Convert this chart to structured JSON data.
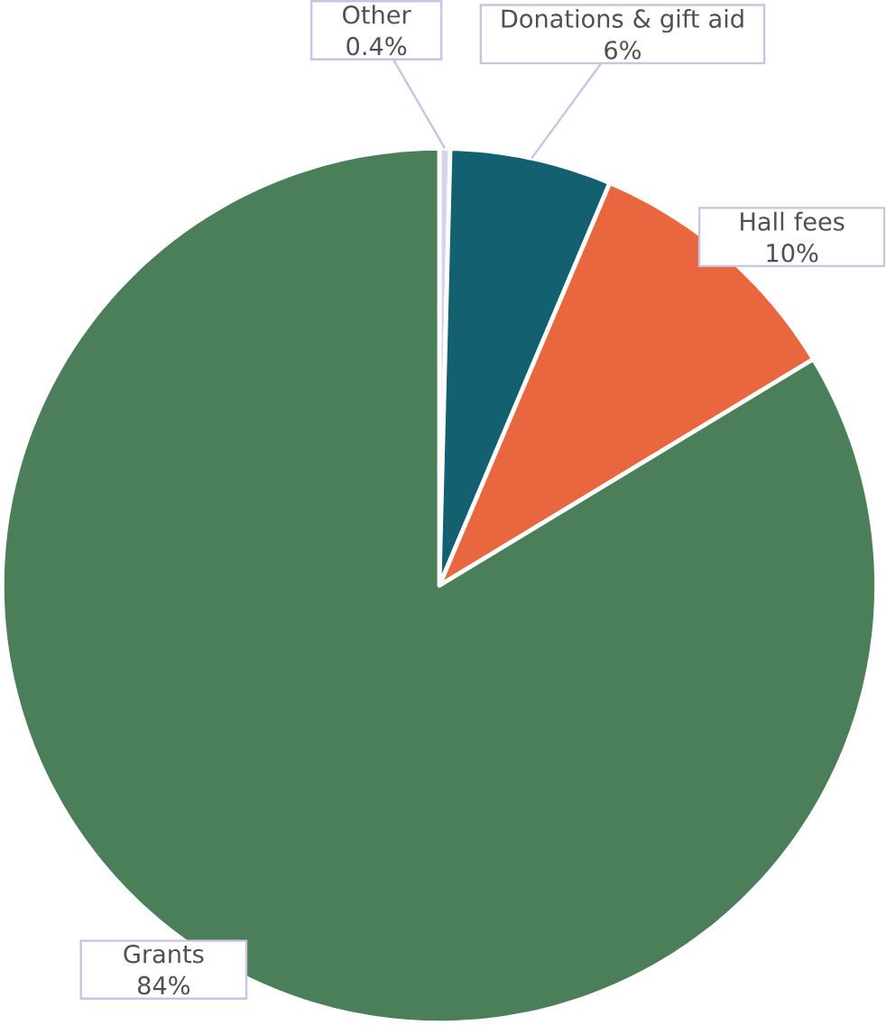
{
  "chart_data": {
    "type": "pie",
    "categories": [
      "Other",
      "Donations & gift aid",
      "Hall fees",
      "Grants"
    ],
    "values": [
      0.4,
      6,
      10,
      84
    ],
    "value_labels": [
      "0.4%",
      "6%",
      "10%",
      "84%"
    ],
    "colors": [
      "#d9d2ee",
      "#136070",
      "#e8673f",
      "#4a7f5a"
    ]
  }
}
